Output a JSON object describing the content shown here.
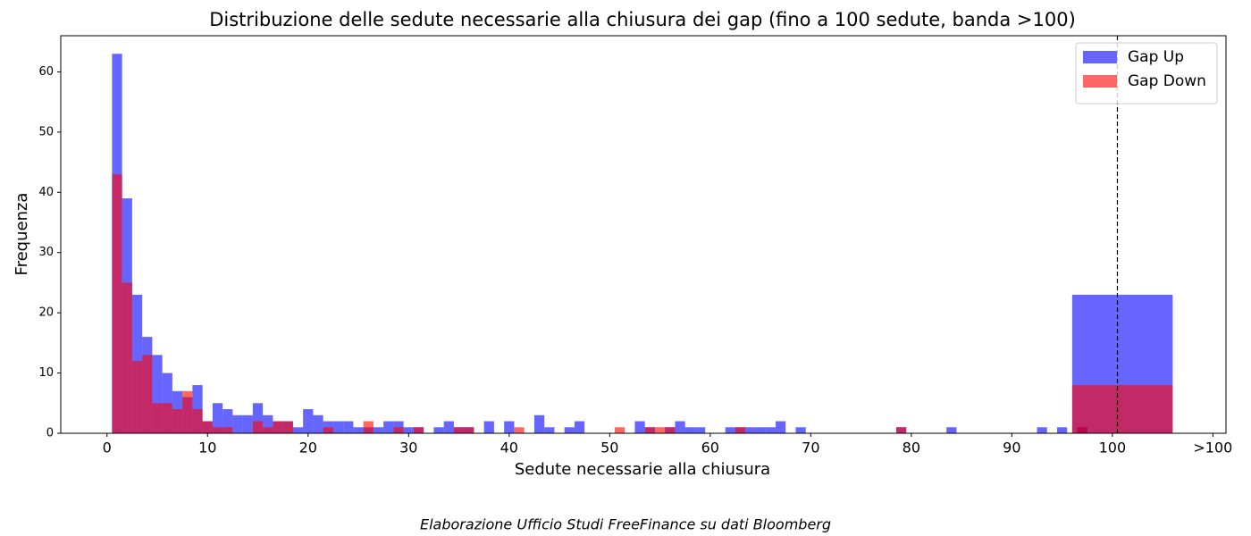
{
  "chart_data": {
    "type": "histogram",
    "title": "Distribuzione delle sedute necessarie alla chiusura dei gap (fino a 100 sedute, banda >100)",
    "xlabel": "Sedute necessarie alla chiusura",
    "ylabel": "Frequenza",
    "footer": "Elaborazione Ufficio Studi FreeFinance su dati Bloomberg",
    "bins": [
      0.5,
      1.5,
      2.5,
      3.5,
      4.5,
      5.5,
      6.5,
      7.5,
      8.5,
      9.5,
      10.5,
      11.5,
      12.5,
      13.5,
      14.5,
      15.5,
      16.5,
      17.5,
      18.5,
      19.5,
      20.5,
      21.5,
      22.5,
      23.5,
      24.5,
      25.5,
      26.5,
      27.5,
      28.5,
      29.5,
      30.5,
      31.5,
      32.5,
      33.5,
      34.5,
      35.5,
      36.5,
      37.5,
      38.5,
      39.5,
      40.5,
      41.5,
      42.5,
      43.5,
      44.5,
      45.5,
      46.5,
      47.5,
      48.5,
      49.5,
      50.5,
      51.5,
      52.5,
      53.5,
      54.5,
      55.5,
      56.5,
      57.5,
      58.5,
      59.5,
      60.5,
      61.5,
      62.5,
      63.5,
      64.5,
      65.5,
      66.5,
      67.5,
      68.5,
      69.5,
      70.5,
      71.5,
      72.5,
      73.5,
      74.5,
      75.5,
      76.5,
      77.5,
      78.5,
      79.5,
      80.5,
      81.5,
      82.5,
      83.5,
      84.5,
      85.5,
      86.5,
      87.5,
      88.5,
      89.5,
      90.5,
      91.5,
      92.5,
      93.5,
      94.5,
      95.5,
      96.5,
      97.5,
      98.5,
      99.5,
      100.5
    ],
    "overflow_bin": [
      96,
      106
    ],
    "series": [
      {
        "name": "Gap Up",
        "color": "#0000ff",
        "overflow": 23,
        "values": [
          63,
          39,
          23,
          16,
          13,
          10,
          7,
          6,
          8,
          2,
          5,
          4,
          3,
          3,
          5,
          3,
          2,
          2,
          1,
          4,
          3,
          2,
          2,
          2,
          1,
          1,
          1,
          2,
          2,
          1,
          1,
          0,
          1,
          2,
          1,
          1,
          0,
          2,
          0,
          2,
          0,
          0,
          3,
          1,
          0,
          1,
          2,
          0,
          0,
          0,
          0,
          0,
          2,
          1,
          0,
          1,
          2,
          1,
          1,
          0,
          0,
          1,
          1,
          1,
          1,
          1,
          2,
          0,
          1,
          0,
          0,
          0,
          0,
          0,
          0,
          0,
          0,
          0,
          1,
          0,
          0,
          0,
          0,
          1,
          0,
          0,
          0,
          0,
          0,
          0,
          0,
          0,
          1,
          0,
          1,
          0,
          1,
          0,
          0,
          0
        ]
      },
      {
        "name": "Gap Down",
        "color": "#ff0000",
        "overflow": 8,
        "values": [
          43,
          25,
          12,
          13,
          5,
          5,
          4,
          7,
          4,
          2,
          1,
          1,
          0,
          0,
          2,
          1,
          2,
          2,
          0,
          0,
          0,
          1,
          0,
          0,
          0,
          2,
          0,
          0,
          1,
          0,
          1,
          0,
          0,
          0,
          1,
          1,
          0,
          0,
          0,
          0,
          1,
          0,
          0,
          0,
          0,
          0,
          0,
          0,
          0,
          0,
          1,
          0,
          0,
          1,
          1,
          1,
          0,
          0,
          0,
          0,
          0,
          0,
          1,
          0,
          0,
          0,
          0,
          0,
          0,
          0,
          0,
          0,
          0,
          0,
          0,
          0,
          0,
          0,
          1,
          0,
          0,
          0,
          0,
          0,
          0,
          0,
          0,
          0,
          0,
          0,
          0,
          0,
          0,
          0,
          0,
          0,
          1,
          0,
          0,
          0
        ]
      }
    ],
    "threshold": 100.5,
    "xlim": [
      -4.6,
      111.3
    ],
    "ylim": [
      0,
      66
    ],
    "xticks": [
      0,
      10,
      20,
      30,
      40,
      50,
      60,
      70,
      80,
      90,
      100,
      {
        "value": 110,
        "label": ">100"
      }
    ],
    "yticks": [
      0,
      10,
      20,
      30,
      40,
      50,
      60
    ],
    "legend": "upper right"
  }
}
